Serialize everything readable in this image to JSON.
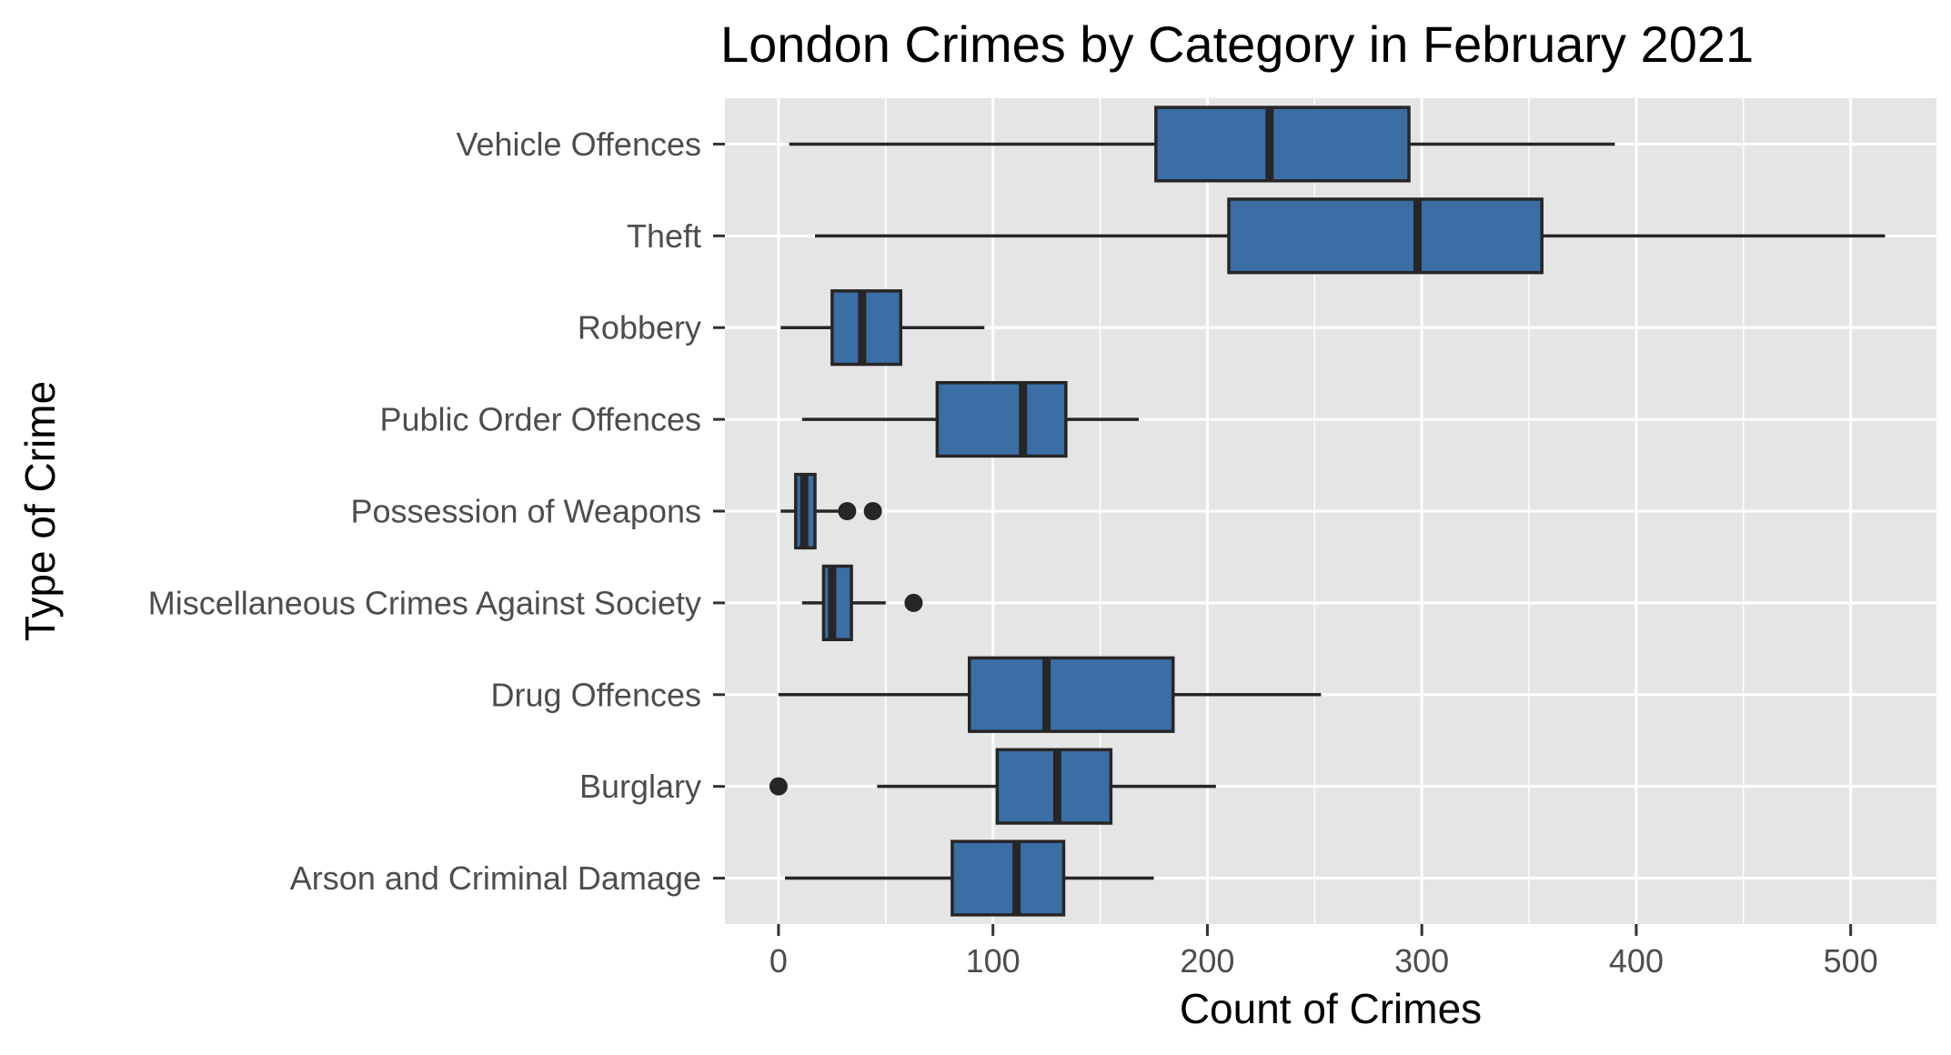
{
  "chart_data": {
    "type": "boxplot",
    "orientation": "horizontal",
    "title": "London Crimes by Category in February 2021",
    "xlabel": "Count of Crimes",
    "ylabel": "Type of Crime",
    "xlim": [
      -25,
      540
    ],
    "x_ticks": [
      0,
      100,
      200,
      300,
      400,
      500
    ],
    "x_tick_labels": [
      "0",
      "100",
      "200",
      "300",
      "400",
      "500"
    ],
    "grid": true,
    "legend": "none",
    "colors": {
      "box_fill": "#3a6ea5",
      "box_stroke": "#262626",
      "panel_background": "#e5e5e5",
      "grid": "#ffffff",
      "outlier": "#262626"
    },
    "categories": [
      "Vehicle Offences",
      "Theft",
      "Robbery",
      "Public Order Offences",
      "Possession of Weapons",
      "Miscellaneous Crimes Against Society",
      "Drug Offences",
      "Burglary",
      "Arson and Criminal Damage"
    ],
    "boxes": [
      {
        "category": "Vehicle Offences",
        "min": 5,
        "q1": 176,
        "median": 229,
        "q3": 294,
        "max": 390,
        "outliers": []
      },
      {
        "category": "Theft",
        "min": 17,
        "q1": 210,
        "median": 298,
        "q3": 356,
        "max": 516,
        "outliers": []
      },
      {
        "category": "Robbery",
        "min": 1,
        "q1": 25,
        "median": 39,
        "q3": 57,
        "max": 96,
        "outliers": []
      },
      {
        "category": "Public Order Offences",
        "min": 11,
        "q1": 74,
        "median": 114,
        "q3": 134,
        "max": 168,
        "outliers": []
      },
      {
        "category": "Possession of Weapons",
        "min": 1,
        "q1": 8,
        "median": 12,
        "q3": 17,
        "max": 29,
        "outliers": [
          32,
          44
        ]
      },
      {
        "category": "Miscellaneous Crimes Against Society",
        "min": 11,
        "q1": 21,
        "median": 25,
        "q3": 34,
        "max": 50,
        "outliers": [
          63
        ]
      },
      {
        "category": "Drug Offences",
        "min": 0,
        "q1": 89,
        "median": 125,
        "q3": 184,
        "max": 253,
        "outliers": []
      },
      {
        "category": "Burglary",
        "min": 46,
        "q1": 102,
        "median": 130,
        "q3": 155,
        "max": 204,
        "outliers": [
          0
        ]
      },
      {
        "category": "Arson and Criminal Damage",
        "min": 3,
        "q1": 81,
        "median": 111,
        "q3": 133,
        "max": 175,
        "outliers": []
      }
    ]
  }
}
